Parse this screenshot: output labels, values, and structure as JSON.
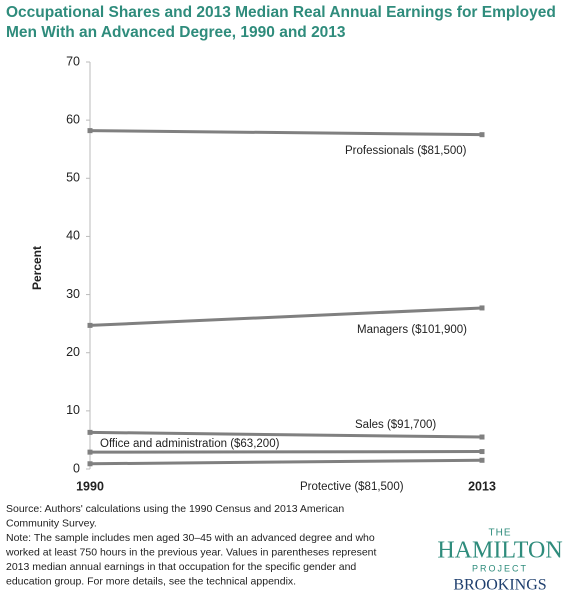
{
  "chart_data": {
    "type": "line",
    "title": [
      "Occupational Shares and 2013 Median Real Annual Earnings for Employed",
      "Men With an Advanced Degree, 1990 and 2013"
    ],
    "y_label": "Percent",
    "categories": [
      "1990",
      "2013"
    ],
    "series": [
      {
        "name": "Professionals ($81,500)",
        "color": "#808080",
        "values": [
          58.2,
          57.5
        ]
      },
      {
        "name": "Managers ($101,900)",
        "color": "#808080",
        "values": [
          24.7,
          27.7
        ]
      },
      {
        "name": "Sales ($91,700)",
        "color": "#808080",
        "values": [
          6.3,
          5.5
        ]
      },
      {
        "name": "Office and administration ($63,200)",
        "color": "#808080",
        "values": [
          2.9,
          3.0
        ]
      },
      {
        "name": "Protective ($81,500)",
        "color": "#808080",
        "values": [
          0.9,
          1.5
        ]
      }
    ],
    "ylim": [
      0,
      70
    ],
    "yticks": [
      0,
      10,
      20,
      30,
      40,
      50,
      60,
      70
    ],
    "grid": false,
    "notes": [
      "Source: Authors' calculations using the 1990 Census and 2013 American",
      "Community Survey.",
      "Note: The sample includes men aged 30–45 with an advanced degree  and who",
      "worked at least 750 hours in the previous year. Values in parentheses represent",
      "2013 median annual earnings in that occupation for the specific gender and",
      "education group. For more details, see the technical appendix."
    ],
    "logo": {
      "the": "THE",
      "hamilton": "HAMILTON",
      "project": "PROJECT",
      "brookings": "BROOKINGS"
    }
  }
}
